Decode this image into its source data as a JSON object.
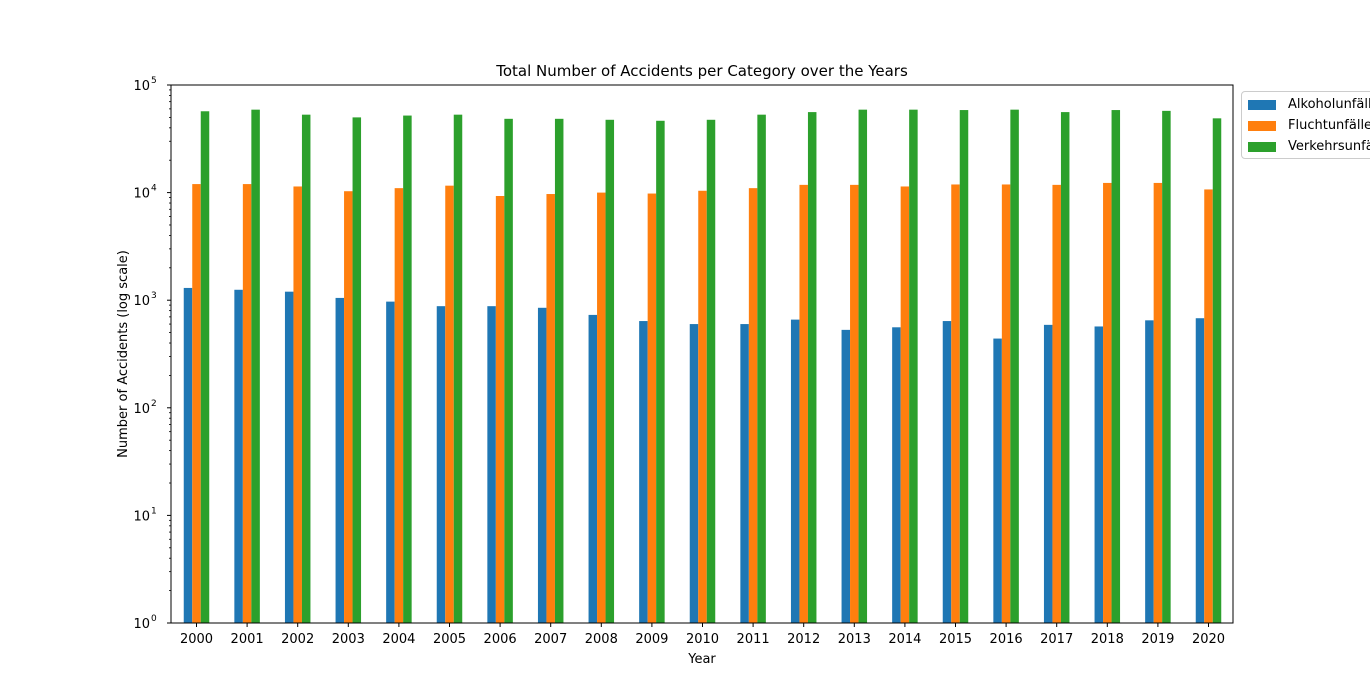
{
  "chart_data": {
    "type": "bar",
    "title": "Total Number of Accidents per Category over the Years",
    "xlabel": "Year",
    "ylabel": "Number of Accidents (log scale)",
    "yscale": "log",
    "ylim": [
      1,
      100000
    ],
    "ytick_values": [
      1,
      10,
      100,
      1000,
      10000,
      100000
    ],
    "ytick_exponents": [
      "0",
      "1",
      "2",
      "3",
      "4",
      "5"
    ],
    "ytick_base": "10",
    "grid": false,
    "legend_position": "upper-right-outside",
    "categories": [
      "2000",
      "2001",
      "2002",
      "2003",
      "2004",
      "2005",
      "2006",
      "2007",
      "2008",
      "2009",
      "2010",
      "2011",
      "2012",
      "2013",
      "2014",
      "2015",
      "2016",
      "2017",
      "2018",
      "2019",
      "2020"
    ],
    "series": [
      {
        "name": "Alkoholunfälle",
        "color": "#1f77b4",
        "values": [
          1300,
          1250,
          1200,
          1050,
          970,
          880,
          880,
          850,
          730,
          640,
          600,
          600,
          660,
          530,
          560,
          640,
          440,
          590,
          570,
          650,
          680
        ]
      },
      {
        "name": "Fluchtunfälle",
        "color": "#ff7f0e",
        "values": [
          12000,
          12000,
          11400,
          10300,
          11000,
          11600,
          9300,
          9700,
          10000,
          9800,
          10400,
          11000,
          11800,
          11800,
          11400,
          11900,
          11900,
          11800,
          12300,
          12300,
          10700
        ]
      },
      {
        "name": "Verkehrsunfälle",
        "color": "#2ca02c",
        "values": [
          57000,
          59000,
          53000,
          50000,
          52000,
          53000,
          48500,
          48500,
          47500,
          46500,
          47500,
          53000,
          56000,
          59000,
          59000,
          58500,
          59000,
          56000,
          58500,
          57500,
          49000
        ]
      }
    ]
  }
}
